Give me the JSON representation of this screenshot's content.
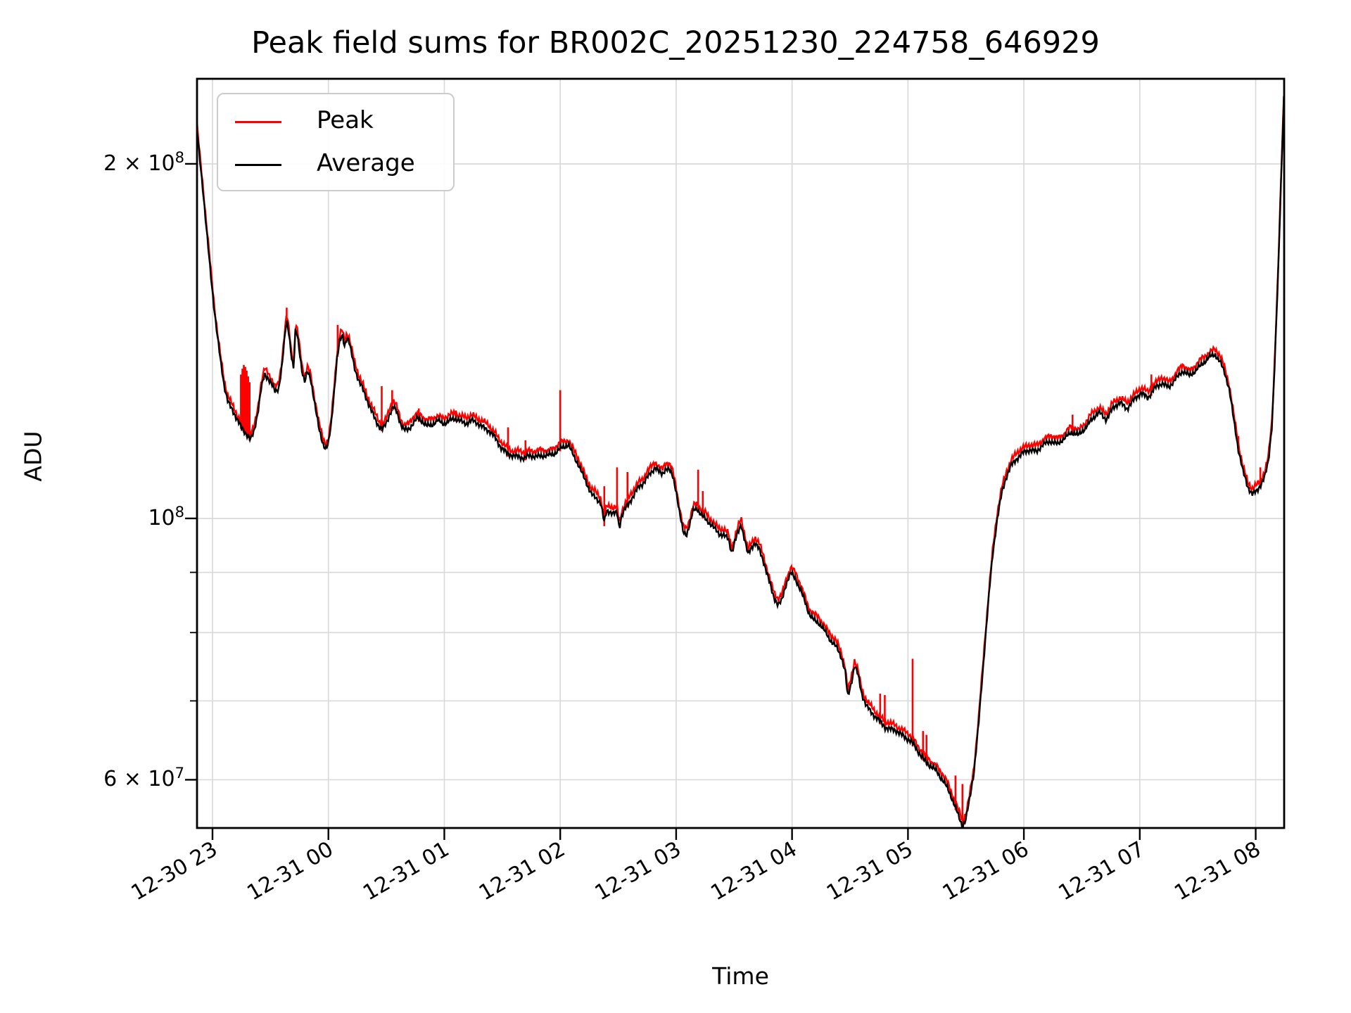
{
  "title": "Peak field sums for BR002C_20251230_224758_646929",
  "axes": {
    "xlabel": "Time",
    "ylabel": "ADU"
  },
  "legend": {
    "position": "upper left",
    "entries": [
      {
        "label": "Peak",
        "color": "#ff0000"
      },
      {
        "label": "Average",
        "color": "#000000"
      }
    ]
  },
  "chart_data": {
    "type": "line",
    "title": "Peak field sums for BR002C_20251230_224758_646929",
    "xlabel": "Time",
    "ylabel": "ADU",
    "grid": true,
    "y_scale": "log",
    "x_unit": "hours after 2025-12-30 23:00",
    "values_unit": "ADU x 1e7",
    "xlim": [
      -0.1335,
      9.2455
    ],
    "ylim_1e7": [
      5.46,
      23.62
    ],
    "ylim": [
      54600000,
      236200000
    ],
    "x_ticks": [
      {
        "t": 0,
        "label": "12-30 23"
      },
      {
        "t": 1,
        "label": "12-31 00"
      },
      {
        "t": 2,
        "label": "12-31 01"
      },
      {
        "t": 3,
        "label": "12-31 02"
      },
      {
        "t": 4,
        "label": "12-31 03"
      },
      {
        "t": 5,
        "label": "12-31 04"
      },
      {
        "t": 6,
        "label": "12-31 05"
      },
      {
        "t": 7,
        "label": "12-31 06"
      },
      {
        "t": 8,
        "label": "12-31 07"
      },
      {
        "t": 9,
        "label": "12-31 08"
      }
    ],
    "y_ticks_major": [
      {
        "v": 20,
        "base": "2 × 10",
        "exp": "8"
      },
      {
        "v": 10,
        "base": "10",
        "exp": "8"
      },
      {
        "v": 6,
        "base": "6 × 10",
        "exp": "7"
      }
    ],
    "y_ticks_minor": [
      9,
      8,
      7
    ],
    "colors": {
      "grid": "#dadada",
      "spine": "#000000",
      "peak": "#ff0000",
      "average": "#000000"
    },
    "series": [
      {
        "name": "Average",
        "color": "#000000",
        "points": [
          [
            -0.133,
            21.3
          ],
          [
            -0.11,
            20.2
          ],
          [
            -0.08,
            18.9
          ],
          [
            -0.05,
            17.5
          ],
          [
            -0.02,
            16.3
          ],
          [
            0.01,
            15.2
          ],
          [
            0.04,
            14.3
          ],
          [
            0.07,
            13.6
          ],
          [
            0.1,
            13.0
          ],
          [
            0.13,
            12.6
          ],
          [
            0.16,
            12.4
          ],
          [
            0.19,
            12.25
          ],
          [
            0.22,
            12.1
          ],
          [
            0.25,
            11.95
          ],
          [
            0.28,
            11.85
          ],
          [
            0.31,
            11.75
          ],
          [
            0.33,
            11.65
          ],
          [
            0.36,
            11.85
          ],
          [
            0.39,
            12.3
          ],
          [
            0.42,
            12.9
          ],
          [
            0.45,
            13.25
          ],
          [
            0.48,
            13.15
          ],
          [
            0.51,
            13.0
          ],
          [
            0.54,
            12.8
          ],
          [
            0.57,
            12.9
          ],
          [
            0.6,
            13.5
          ],
          [
            0.625,
            14.3
          ],
          [
            0.64,
            14.7
          ],
          [
            0.66,
            14.35
          ],
          [
            0.68,
            13.75
          ],
          [
            0.7,
            13.4
          ],
          [
            0.715,
            14.4
          ],
          [
            0.73,
            14.35
          ],
          [
            0.75,
            13.9
          ],
          [
            0.77,
            13.4
          ],
          [
            0.795,
            13.05
          ],
          [
            0.82,
            13.3
          ],
          [
            0.845,
            13.15
          ],
          [
            0.87,
            12.75
          ],
          [
            0.895,
            12.3
          ],
          [
            0.92,
            11.9
          ],
          [
            0.95,
            11.6
          ],
          [
            0.975,
            11.45
          ],
          [
            1.0,
            11.55
          ],
          [
            1.025,
            12.05
          ],
          [
            1.05,
            12.85
          ],
          [
            1.075,
            13.7
          ],
          [
            1.1,
            14.15
          ],
          [
            1.12,
            14.3
          ],
          [
            1.14,
            14.0
          ],
          [
            1.16,
            14.25
          ],
          [
            1.18,
            14.1
          ],
          [
            1.2,
            13.8
          ],
          [
            1.23,
            13.4
          ],
          [
            1.26,
            13.1
          ],
          [
            1.29,
            12.9
          ],
          [
            1.32,
            12.7
          ],
          [
            1.35,
            12.5
          ],
          [
            1.38,
            12.3
          ],
          [
            1.41,
            12.1
          ],
          [
            1.44,
            11.95
          ],
          [
            1.47,
            11.9
          ],
          [
            1.5,
            12.05
          ],
          [
            1.53,
            12.3
          ],
          [
            1.56,
            12.45
          ],
          [
            1.59,
            12.3
          ],
          [
            1.62,
            12.05
          ],
          [
            1.65,
            11.9
          ],
          [
            1.69,
            11.9
          ],
          [
            1.73,
            12.05
          ],
          [
            1.77,
            12.15
          ],
          [
            1.81,
            12.1
          ],
          [
            1.85,
            12.0
          ],
          [
            1.89,
            12.0
          ],
          [
            1.94,
            12.1
          ],
          [
            1.99,
            12.05
          ],
          [
            2.04,
            12.1
          ],
          [
            2.09,
            12.15
          ],
          [
            2.14,
            12.1
          ],
          [
            2.19,
            12.05
          ],
          [
            2.24,
            12.1
          ],
          [
            2.29,
            12.05
          ],
          [
            2.34,
            11.95
          ],
          [
            2.39,
            11.85
          ],
          [
            2.44,
            11.7
          ],
          [
            2.49,
            11.5
          ],
          [
            2.54,
            11.35
          ],
          [
            2.59,
            11.3
          ],
          [
            2.64,
            11.3
          ],
          [
            2.69,
            11.25
          ],
          [
            2.74,
            11.3
          ],
          [
            2.79,
            11.3
          ],
          [
            2.84,
            11.3
          ],
          [
            2.89,
            11.3
          ],
          [
            2.94,
            11.35
          ],
          [
            2.99,
            11.45
          ],
          [
            3.04,
            11.5
          ],
          [
            3.07,
            11.55
          ],
          [
            3.11,
            11.35
          ],
          [
            3.15,
            11.15
          ],
          [
            3.19,
            10.9
          ],
          [
            3.23,
            10.7
          ],
          [
            3.27,
            10.5
          ],
          [
            3.31,
            10.4
          ],
          [
            3.35,
            10.3
          ],
          [
            3.38,
            9.9
          ],
          [
            3.4,
            10.15
          ],
          [
            3.43,
            10.15
          ],
          [
            3.46,
            10.1
          ],
          [
            3.49,
            10.1
          ],
          [
            3.51,
            9.8
          ],
          [
            3.53,
            10.05
          ],
          [
            3.56,
            10.2
          ],
          [
            3.59,
            10.3
          ],
          [
            3.63,
            10.45
          ],
          [
            3.67,
            10.6
          ],
          [
            3.71,
            10.7
          ],
          [
            3.75,
            10.85
          ],
          [
            3.79,
            10.95
          ],
          [
            3.82,
            11.05
          ],
          [
            3.85,
            10.95
          ],
          [
            3.88,
            10.9
          ],
          [
            3.91,
            11.05
          ],
          [
            3.94,
            11.0
          ],
          [
            3.97,
            10.85
          ],
          [
            4.0,
            10.55
          ],
          [
            4.03,
            10.1
          ],
          [
            4.06,
            9.75
          ],
          [
            4.09,
            9.7
          ],
          [
            4.12,
            9.9
          ],
          [
            4.15,
            10.15
          ],
          [
            4.18,
            10.2
          ],
          [
            4.21,
            10.1
          ],
          [
            4.25,
            10.0
          ],
          [
            4.29,
            9.9
          ],
          [
            4.33,
            9.8
          ],
          [
            4.37,
            9.72
          ],
          [
            4.41,
            9.68
          ],
          [
            4.45,
            9.6
          ],
          [
            4.48,
            9.35
          ],
          [
            4.52,
            9.65
          ],
          [
            4.56,
            9.9
          ],
          [
            4.59,
            9.6
          ],
          [
            4.62,
            9.3
          ],
          [
            4.65,
            9.45
          ],
          [
            4.68,
            9.55
          ],
          [
            4.72,
            9.4
          ],
          [
            4.76,
            9.15
          ],
          [
            4.8,
            8.85
          ],
          [
            4.84,
            8.6
          ],
          [
            4.88,
            8.45
          ],
          [
            4.91,
            8.5
          ],
          [
            4.95,
            8.8
          ],
          [
            4.99,
            9.0
          ],
          [
            5.03,
            8.9
          ],
          [
            5.07,
            8.7
          ],
          [
            5.11,
            8.5
          ],
          [
            5.15,
            8.3
          ],
          [
            5.19,
            8.2
          ],
          [
            5.23,
            8.15
          ],
          [
            5.27,
            8.05
          ],
          [
            5.31,
            7.95
          ],
          [
            5.35,
            7.85
          ],
          [
            5.39,
            7.75
          ],
          [
            5.43,
            7.6
          ],
          [
            5.46,
            7.4
          ],
          [
            5.48,
            7.05
          ],
          [
            5.51,
            7.25
          ],
          [
            5.54,
            7.5
          ],
          [
            5.57,
            7.35
          ],
          [
            5.6,
            7.1
          ],
          [
            5.64,
            6.95
          ],
          [
            5.68,
            6.85
          ],
          [
            5.72,
            6.78
          ],
          [
            5.76,
            6.72
          ],
          [
            5.8,
            6.66
          ],
          [
            5.85,
            6.62
          ],
          [
            5.9,
            6.6
          ],
          [
            5.95,
            6.55
          ],
          [
            6.0,
            6.5
          ],
          [
            6.05,
            6.42
          ],
          [
            6.1,
            6.32
          ],
          [
            6.15,
            6.22
          ],
          [
            6.2,
            6.15
          ],
          [
            6.25,
            6.1
          ],
          [
            6.3,
            6.0
          ],
          [
            6.34,
            5.9
          ],
          [
            6.38,
            5.78
          ],
          [
            6.42,
            5.65
          ],
          [
            6.45,
            5.55
          ],
          [
            6.47,
            5.48
          ],
          [
            6.5,
            5.55
          ],
          [
            6.53,
            5.75
          ],
          [
            6.57,
            6.1
          ],
          [
            6.61,
            6.7
          ],
          [
            6.65,
            7.5
          ],
          [
            6.69,
            8.4
          ],
          [
            6.73,
            9.3
          ],
          [
            6.77,
            10.0
          ],
          [
            6.81,
            10.5
          ],
          [
            6.85,
            10.85
          ],
          [
            6.89,
            11.1
          ],
          [
            6.94,
            11.25
          ],
          [
            6.99,
            11.35
          ],
          [
            7.05,
            11.45
          ],
          [
            7.11,
            11.4
          ],
          [
            7.17,
            11.55
          ],
          [
            7.23,
            11.65
          ],
          [
            7.29,
            11.55
          ],
          [
            7.35,
            11.7
          ],
          [
            7.41,
            11.85
          ],
          [
            7.47,
            11.75
          ],
          [
            7.53,
            11.95
          ],
          [
            7.59,
            12.15
          ],
          [
            7.65,
            12.3
          ],
          [
            7.71,
            12.15
          ],
          [
            7.77,
            12.4
          ],
          [
            7.83,
            12.55
          ],
          [
            7.89,
            12.4
          ],
          [
            7.95,
            12.6
          ],
          [
            8.01,
            12.8
          ],
          [
            8.07,
            12.65
          ],
          [
            8.13,
            12.9
          ],
          [
            8.19,
            13.05
          ],
          [
            8.25,
            12.9
          ],
          [
            8.31,
            13.15
          ],
          [
            8.37,
            13.35
          ],
          [
            8.43,
            13.2
          ],
          [
            8.49,
            13.4
          ],
          [
            8.55,
            13.55
          ],
          [
            8.6,
            13.7
          ],
          [
            8.65,
            13.8
          ],
          [
            8.69,
            13.6
          ],
          [
            8.73,
            13.3
          ],
          [
            8.77,
            12.9
          ],
          [
            8.81,
            12.15
          ],
          [
            8.85,
            11.45
          ],
          [
            8.89,
            10.95
          ],
          [
            8.93,
            10.65
          ],
          [
            8.97,
            10.5
          ],
          [
            9.01,
            10.55
          ],
          [
            9.05,
            10.7
          ],
          [
            9.08,
            10.85
          ],
          [
            9.11,
            11.2
          ],
          [
            9.14,
            12.0
          ],
          [
            9.16,
            13.2
          ],
          [
            9.18,
            14.8
          ],
          [
            9.2,
            16.8
          ],
          [
            9.215,
            18.8
          ],
          [
            9.228,
            20.6
          ],
          [
            9.238,
            22.0
          ],
          [
            9.245,
            23.1
          ]
        ]
      },
      {
        "name": "Peak",
        "color": "#ff0000",
        "note": "equals Average plus upward spikes at these times",
        "spikes": [
          [
            0.245,
            13.25
          ],
          [
            0.258,
            13.4
          ],
          [
            0.27,
            13.5
          ],
          [
            0.283,
            13.45
          ],
          [
            0.295,
            13.35
          ],
          [
            0.308,
            13.2
          ],
          [
            0.32,
            13.05
          ],
          [
            0.64,
            15.1
          ],
          [
            1.08,
            14.6
          ],
          [
            1.46,
            12.95
          ],
          [
            1.55,
            12.85
          ],
          [
            1.78,
            12.4
          ],
          [
            2.1,
            12.35
          ],
          [
            2.55,
            11.95
          ],
          [
            2.7,
            11.65
          ],
          [
            3.0,
            12.85
          ],
          [
            3.38,
            10.65
          ],
          [
            3.49,
            11.05
          ],
          [
            3.58,
            10.95
          ],
          [
            4.19,
            11.0
          ],
          [
            4.23,
            10.55
          ],
          [
            5.76,
            7.1
          ],
          [
            5.8,
            7.08
          ],
          [
            6.04,
            7.6
          ],
          [
            6.13,
            6.6
          ],
          [
            6.16,
            6.55
          ],
          [
            6.41,
            6.05
          ],
          [
            6.47,
            5.95
          ],
          [
            7.42,
            12.25
          ],
          [
            8.1,
            13.25
          ],
          [
            8.85,
            11.75
          ],
          [
            9.04,
            11.05
          ]
        ]
      }
    ]
  }
}
